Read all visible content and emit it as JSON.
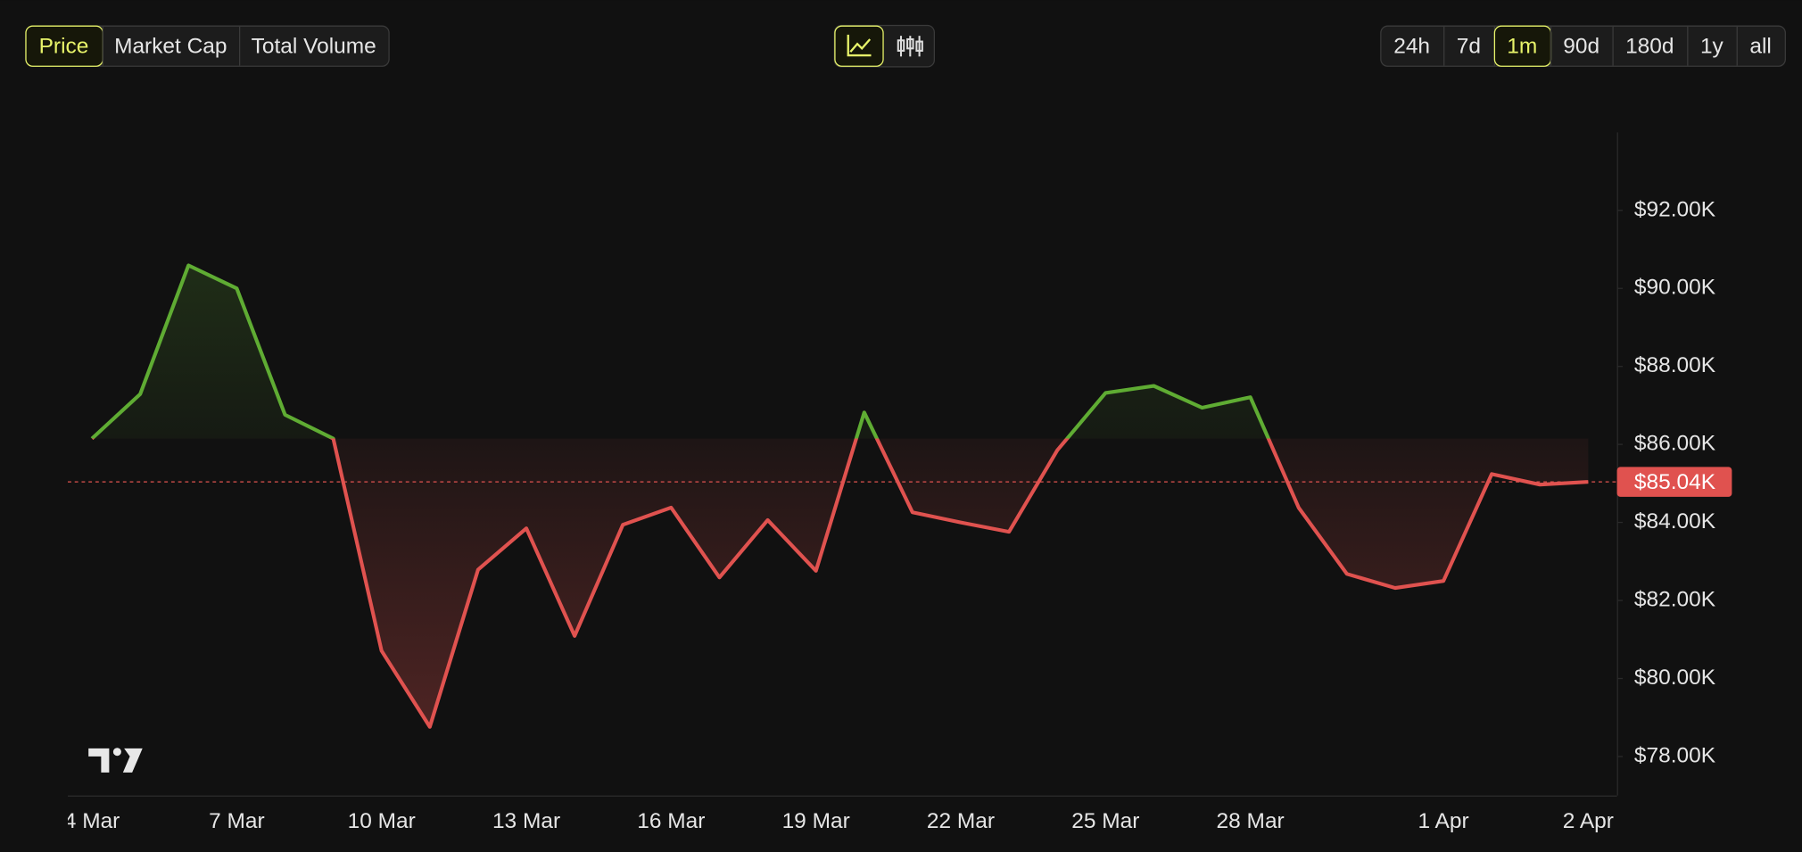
{
  "toolbar": {
    "metrics": [
      "Price",
      "Market Cap",
      "Total Volume"
    ],
    "active_metric": 0,
    "ranges": [
      "24h",
      "7d",
      "1m",
      "90d",
      "180d",
      "1y",
      "all"
    ],
    "active_range": 2
  },
  "chart_data": {
    "type": "baseline",
    "categories": [
      "4 Mar",
      null,
      null,
      "7 Mar",
      null,
      null,
      "10 Mar",
      null,
      null,
      "13 Mar",
      null,
      null,
      "16 Mar",
      null,
      null,
      "19 Mar",
      null,
      null,
      "22 Mar",
      null,
      null,
      "25 Mar",
      null,
      null,
      "28 Mar",
      null,
      null,
      null,
      "1 Apr",
      null,
      null,
      "2 Apr"
    ],
    "values": [
      86.15,
      87.29,
      90.59,
      90.0,
      86.76,
      86.15,
      80.71,
      78.76,
      82.79,
      83.85,
      81.09,
      83.94,
      84.38,
      82.59,
      84.06,
      82.76,
      86.82,
      84.26,
      84.0,
      83.76,
      85.85,
      87.32,
      87.5,
      86.94,
      87.21,
      84.38,
      82.68,
      82.32,
      82.5,
      85.24,
      84.97,
      85.04
    ],
    "up_color": "#5fac33",
    "down_color": "#e0524f",
    "ylim": [
      77,
      94
    ],
    "yticks": [
      {
        "value": 78,
        "label": "$78.00K"
      },
      {
        "value": 80,
        "label": "$80.00K"
      },
      {
        "value": 82,
        "label": "$82.00K"
      },
      {
        "value": 84,
        "label": "$84.00K"
      },
      {
        "value": 86,
        "label": "$86.00K"
      },
      {
        "value": 88,
        "label": "$88.00K"
      },
      {
        "value": 90,
        "label": "$90.00K"
      },
      {
        "value": 92,
        "label": "$92.00K"
      }
    ],
    "current_price": {
      "value": 85.04,
      "label": "$85.04K"
    }
  }
}
